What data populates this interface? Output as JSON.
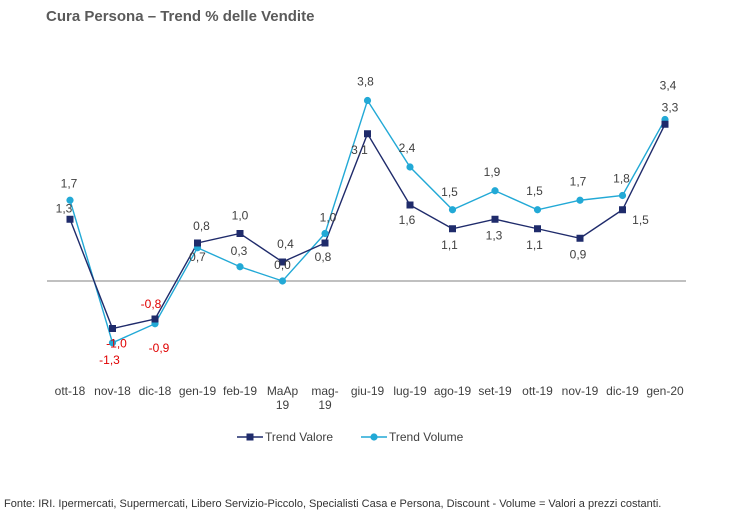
{
  "chart_data": {
    "type": "line",
    "title": "Cura Persona – Trend % delle Vendite",
    "categories": [
      [
        "ott-18"
      ],
      [
        "nov-18"
      ],
      [
        "dic-18"
      ],
      [
        "gen-19"
      ],
      [
        "feb-19"
      ],
      [
        "MaAp",
        "19"
      ],
      [
        "mag-",
        "19"
      ],
      [
        "giu-19"
      ],
      [
        "lug-19"
      ],
      [
        "ago-19"
      ],
      [
        "set-19"
      ],
      [
        "ott-19"
      ],
      [
        "nov-19"
      ],
      [
        "dic-19"
      ],
      [
        "gen-20"
      ]
    ],
    "series": [
      {
        "name": "Trend Valore",
        "color": "#1f2b6b",
        "marker": "square",
        "values": [
          1.3,
          -1.0,
          -0.8,
          0.8,
          1.0,
          0.4,
          0.8,
          3.1,
          1.6,
          1.1,
          1.3,
          1.1,
          0.9,
          1.5,
          3.3
        ],
        "labels": [
          "1,3",
          "-1,0",
          "-0,8",
          "0,8",
          "1,0",
          "0,4",
          "0,8",
          "3,1",
          "1,6",
          "1,1",
          "1,3",
          "1,1",
          "0,9",
          "1,5",
          "3,3"
        ]
      },
      {
        "name": "Trend Volume",
        "color": "#22a9d6",
        "marker": "circle",
        "values": [
          1.7,
          -1.3,
          -0.9,
          0.7,
          0.3,
          0.0,
          1.0,
          3.8,
          2.4,
          1.5,
          1.9,
          1.5,
          1.7,
          1.8,
          3.4
        ],
        "labels": [
          "1,7",
          "-1,3",
          "-0,9",
          "0,7",
          "0,3",
          "0,0",
          "1,0",
          "3,8",
          "2,4",
          "1,5",
          "1,9",
          "1,5",
          "1,7",
          "1,8",
          "3,4"
        ]
      }
    ],
    "negative_label_color": "#e00000",
    "zero_line": true,
    "grid": false,
    "legend_position": "bottom",
    "yaxis_visible": false
  },
  "footnote": "Fonte: IRI. Ipermercati, Supermercati, Libero Servizio-Piccolo,  Specialisti Casa e Persona, Discount -  Volume =  Valori a prezzi  costanti."
}
